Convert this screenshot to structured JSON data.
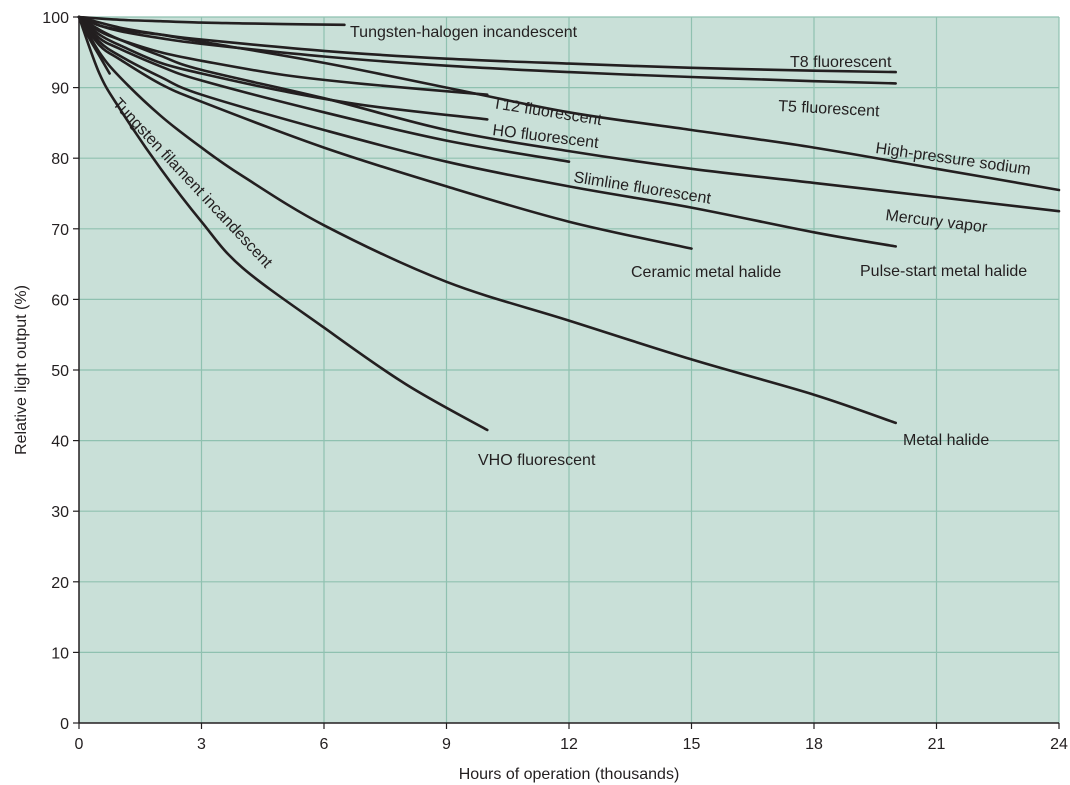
{
  "chart_data": {
    "type": "line",
    "xlabel": "Hours of operation (thousands)",
    "ylabel": "Relative light output (%)",
    "xlim": [
      0,
      24
    ],
    "ylim": [
      0,
      100
    ],
    "x_ticks": [
      "0",
      "3",
      "6",
      "9",
      "12",
      "15",
      "18",
      "21",
      "24"
    ],
    "y_ticks": [
      "0",
      "10",
      "20",
      "30",
      "40",
      "50",
      "60",
      "70",
      "80",
      "90",
      "100"
    ],
    "grid": true,
    "legend": "none (series labeled directly on the lines)",
    "colors": {
      "plot_background": "#c9e0d8",
      "grid": "#8fc1b0",
      "lines": "#231f20"
    },
    "series": [
      {
        "name": "Tungsten-halogen incandescent",
        "x": [
          0,
          1,
          2,
          3,
          4,
          5,
          6.5
        ],
        "y": [
          100,
          99.6,
          99.4,
          99.2,
          99.1,
          99.0,
          98.9
        ]
      },
      {
        "name": "T8 fluorescent",
        "x": [
          0,
          0.5,
          1,
          2,
          3,
          6,
          9,
          12,
          15,
          18,
          20
        ],
        "y": [
          100,
          98.8,
          98.2,
          97.5,
          96.8,
          95.2,
          94.1,
          93.4,
          92.8,
          92.4,
          92.2
        ]
      },
      {
        "name": "T5 fluorescent",
        "x": [
          0,
          0.5,
          1,
          2,
          3,
          6,
          9,
          12,
          15,
          18,
          20
        ],
        "y": [
          100,
          98.8,
          98.0,
          97.0,
          96.2,
          94.4,
          93.1,
          92.2,
          91.5,
          90.9,
          90.6
        ]
      },
      {
        "name": "High-pressure sodium",
        "x": [
          0,
          1,
          2,
          3,
          6,
          9,
          12,
          15,
          18,
          21,
          24
        ],
        "y": [
          100,
          98.5,
          97.5,
          96.5,
          93.5,
          90.0,
          86.5,
          84.0,
          81.5,
          78.5,
          75.5
        ]
      },
      {
        "name": "Mercury vapor",
        "x": [
          0,
          0.5,
          1,
          2,
          3,
          6,
          9,
          12,
          15,
          18,
          21,
          24
        ],
        "y": [
          100,
          98.2,
          96.8,
          94.5,
          92.5,
          88.5,
          84.0,
          81.0,
          78.5,
          76.5,
          74.5,
          72.5
        ]
      },
      {
        "name": "T12 fluorescent",
        "x": [
          0,
          0.5,
          1,
          2,
          3,
          5,
          7,
          10
        ],
        "y": [
          100,
          98.0,
          96.8,
          95.0,
          93.8,
          91.8,
          90.5,
          89.0
        ]
      },
      {
        "name": "HO fluorescent",
        "x": [
          0,
          0.5,
          1,
          2,
          3,
          5,
          7,
          10
        ],
        "y": [
          100,
          97.5,
          96.0,
          93.5,
          92.0,
          89.5,
          87.5,
          85.5
        ]
      },
      {
        "name": "Slimline fluorescent",
        "x": [
          0,
          0.5,
          1,
          2,
          3,
          6,
          9,
          12
        ],
        "y": [
          100,
          97.0,
          95.5,
          93.0,
          91.0,
          86.5,
          82.5,
          79.5
        ]
      },
      {
        "name": "Pulse-start metal halide",
        "x": [
          0,
          0.5,
          1,
          2,
          3,
          6,
          9,
          12,
          15,
          18,
          20
        ],
        "y": [
          100,
          96.5,
          94.5,
          91.5,
          89.0,
          84.0,
          79.5,
          76.0,
          73.0,
          69.5,
          67.5
        ]
      },
      {
        "name": "Ceramic metal halide",
        "x": [
          0,
          0.5,
          1,
          2,
          3,
          6,
          9,
          12,
          15
        ],
        "y": [
          100,
          96.0,
          94.0,
          90.5,
          88.0,
          81.5,
          76.0,
          71.0,
          67.2
        ]
      },
      {
        "name": "Metal halide",
        "x": [
          0,
          0.5,
          1,
          2,
          3,
          4,
          6,
          9,
          12,
          15,
          18,
          20
        ],
        "y": [
          100,
          95.0,
          91.5,
          86.0,
          81.5,
          77.5,
          70.5,
          62.5,
          57.0,
          51.5,
          46.5,
          42.5
        ]
      },
      {
        "name": "VHO fluorescent",
        "x": [
          0,
          0.5,
          1,
          2,
          3,
          4,
          6,
          8,
          10
        ],
        "y": [
          100,
          92.0,
          87.0,
          78.5,
          71.0,
          64.5,
          56.0,
          48.0,
          41.5
        ]
      },
      {
        "name": "Tungsten filament incandescent",
        "x": [
          0,
          0.25,
          0.5,
          0.75
        ],
        "y": [
          100,
          97.0,
          94.5,
          92.0
        ]
      }
    ]
  }
}
